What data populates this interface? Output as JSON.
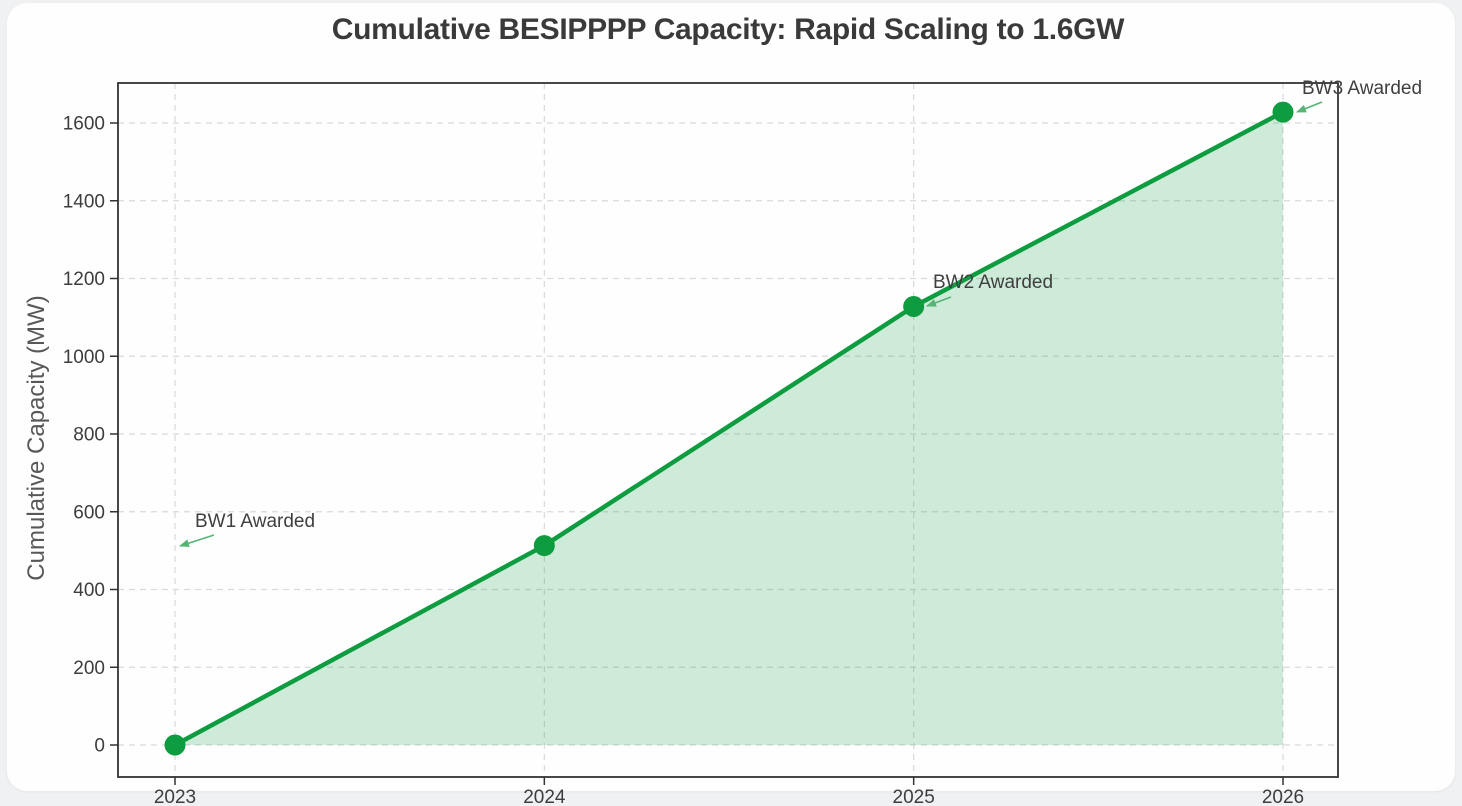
{
  "page": {
    "background_color": "#eff1f3",
    "card_background_color": "#fefefe"
  },
  "chart_data": {
    "type": "area",
    "title": "Cumulative BESIPPPP Capacity: Rapid Scaling to 1.6GW",
    "xlabel": "",
    "ylabel": "Cumulative Capacity (MW)",
    "categories": [
      "2023",
      "2024",
      "2025",
      "2026"
    ],
    "values": [
      0,
      513,
      1128,
      1628
    ],
    "yticks": [
      0,
      200,
      400,
      600,
      800,
      1000,
      1200,
      1400,
      1600
    ],
    "ylim": [
      -81,
      1709
    ],
    "grid": "dashed",
    "legend_position": "none",
    "line_color": "#0e9c40",
    "fill_color": "rgba(14, 156, 64, 0.2)",
    "marker_color": "#0e9c40",
    "gridline_color": "#d9d9d9",
    "spine_color": "#333333",
    "tick_label_color": "#3d3d3d",
    "annotation_text_color": "#3f3f3f",
    "annotation_arrow_color": "#57b477",
    "annotations": [
      {
        "id": "bw1",
        "label": "BW1 Awarded"
      },
      {
        "id": "bw2",
        "label": "BW2 Awarded"
      },
      {
        "id": "bw3",
        "label": "BW3 Awarded"
      }
    ]
  }
}
